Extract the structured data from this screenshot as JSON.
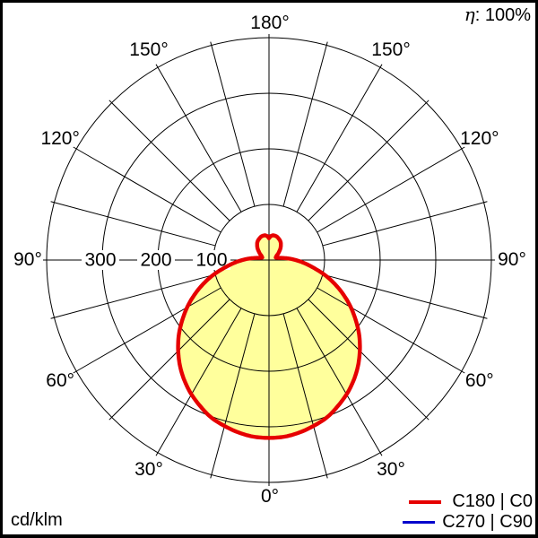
{
  "title": {
    "eta_symbol": "η",
    "eta_value": ": 100%",
    "units": "cd/klm"
  },
  "legend": {
    "items": [
      {
        "label": "C180 | C0",
        "color": "#e60000"
      },
      {
        "label": "C270 | C90",
        "color": "#0000cc"
      }
    ]
  },
  "polar_grid": {
    "spoke_step_deg": 15,
    "radial_ticks": [
      {
        "value": 100,
        "label": "100"
      },
      {
        "value": 200,
        "label": "200"
      },
      {
        "value": 300,
        "label": "300"
      }
    ],
    "radial_max": 400,
    "angle_labels": [
      {
        "label": "180°",
        "angle_from_top": 0,
        "side": "center"
      },
      {
        "label": "150°",
        "angle_from_top": 30,
        "side": "left"
      },
      {
        "label": "150°",
        "angle_from_top": 30,
        "side": "right"
      },
      {
        "label": "120°",
        "angle_from_top": 60,
        "side": "left"
      },
      {
        "label": "120°",
        "angle_from_top": 60,
        "side": "right"
      },
      {
        "label": "90°",
        "angle_from_top": 90,
        "side": "left"
      },
      {
        "label": "90°",
        "angle_from_top": 90,
        "side": "right"
      },
      {
        "label": "60°",
        "angle_from_top": 120,
        "side": "left"
      },
      {
        "label": "60°",
        "angle_from_top": 120,
        "side": "right"
      },
      {
        "label": "30°",
        "angle_from_top": 150,
        "side": "left"
      },
      {
        "label": "30°",
        "angle_from_top": 150,
        "side": "right"
      },
      {
        "label": "0°",
        "angle_from_top": 180,
        "side": "center"
      }
    ]
  },
  "chart_data": {
    "type": "line",
    "polar": true,
    "units": "cd/klm",
    "angle_convention": "0 deg = nadir (down), 180 deg = zenith (up); curve symmetric about vertical axis",
    "radial_axis": {
      "ticks": [
        100,
        200,
        300
      ],
      "max": 400
    },
    "efficiency": "η: 100%",
    "fill_color": "#ffff9c",
    "series": [
      {
        "name": "C180 | C0",
        "color": "#e60000",
        "filled": true,
        "points_deg_cd": [
          [
            0,
            320
          ],
          [
            5,
            319
          ],
          [
            10,
            315
          ],
          [
            15,
            309
          ],
          [
            20,
            302
          ],
          [
            25,
            291
          ],
          [
            30,
            279
          ],
          [
            35,
            265
          ],
          [
            40,
            249
          ],
          [
            45,
            231
          ],
          [
            50,
            212
          ],
          [
            55,
            191
          ],
          [
            60,
            170
          ],
          [
            65,
            148
          ],
          [
            70,
            126
          ],
          [
            75,
            104
          ],
          [
            80,
            82
          ],
          [
            85,
            64
          ],
          [
            90,
            48
          ],
          [
            95,
            34
          ],
          [
            100,
            22
          ],
          [
            105,
            16
          ],
          [
            110,
            13
          ],
          [
            115,
            14
          ],
          [
            120,
            16
          ],
          [
            125,
            20
          ],
          [
            130,
            24
          ],
          [
            135,
            29
          ],
          [
            140,
            33
          ],
          [
            145,
            37
          ],
          [
            150,
            40
          ],
          [
            155,
            42
          ],
          [
            160,
            44
          ],
          [
            165,
            45
          ],
          [
            170,
            45
          ],
          [
            174,
            44
          ],
          [
            177,
            42
          ],
          [
            180,
            39
          ]
        ]
      },
      {
        "name": "C270 | C90",
        "color": "#0000cc",
        "filled": false,
        "note": "identical to C180 | C0, hidden underneath red curve",
        "points_deg_cd": [
          [
            0,
            320
          ],
          [
            5,
            319
          ],
          [
            10,
            315
          ],
          [
            15,
            309
          ],
          [
            20,
            302
          ],
          [
            25,
            291
          ],
          [
            30,
            279
          ],
          [
            35,
            265
          ],
          [
            40,
            249
          ],
          [
            45,
            231
          ],
          [
            50,
            212
          ],
          [
            55,
            191
          ],
          [
            60,
            170
          ],
          [
            65,
            148
          ],
          [
            70,
            126
          ],
          [
            75,
            104
          ],
          [
            80,
            82
          ],
          [
            85,
            64
          ],
          [
            90,
            48
          ],
          [
            95,
            34
          ],
          [
            100,
            22
          ],
          [
            105,
            16
          ],
          [
            110,
            13
          ],
          [
            115,
            14
          ],
          [
            120,
            16
          ],
          [
            125,
            20
          ],
          [
            130,
            24
          ],
          [
            135,
            29
          ],
          [
            140,
            33
          ],
          [
            145,
            37
          ],
          [
            150,
            40
          ],
          [
            155,
            42
          ],
          [
            160,
            44
          ],
          [
            165,
            45
          ],
          [
            170,
            45
          ],
          [
            174,
            44
          ],
          [
            177,
            42
          ],
          [
            180,
            39
          ]
        ]
      }
    ]
  }
}
